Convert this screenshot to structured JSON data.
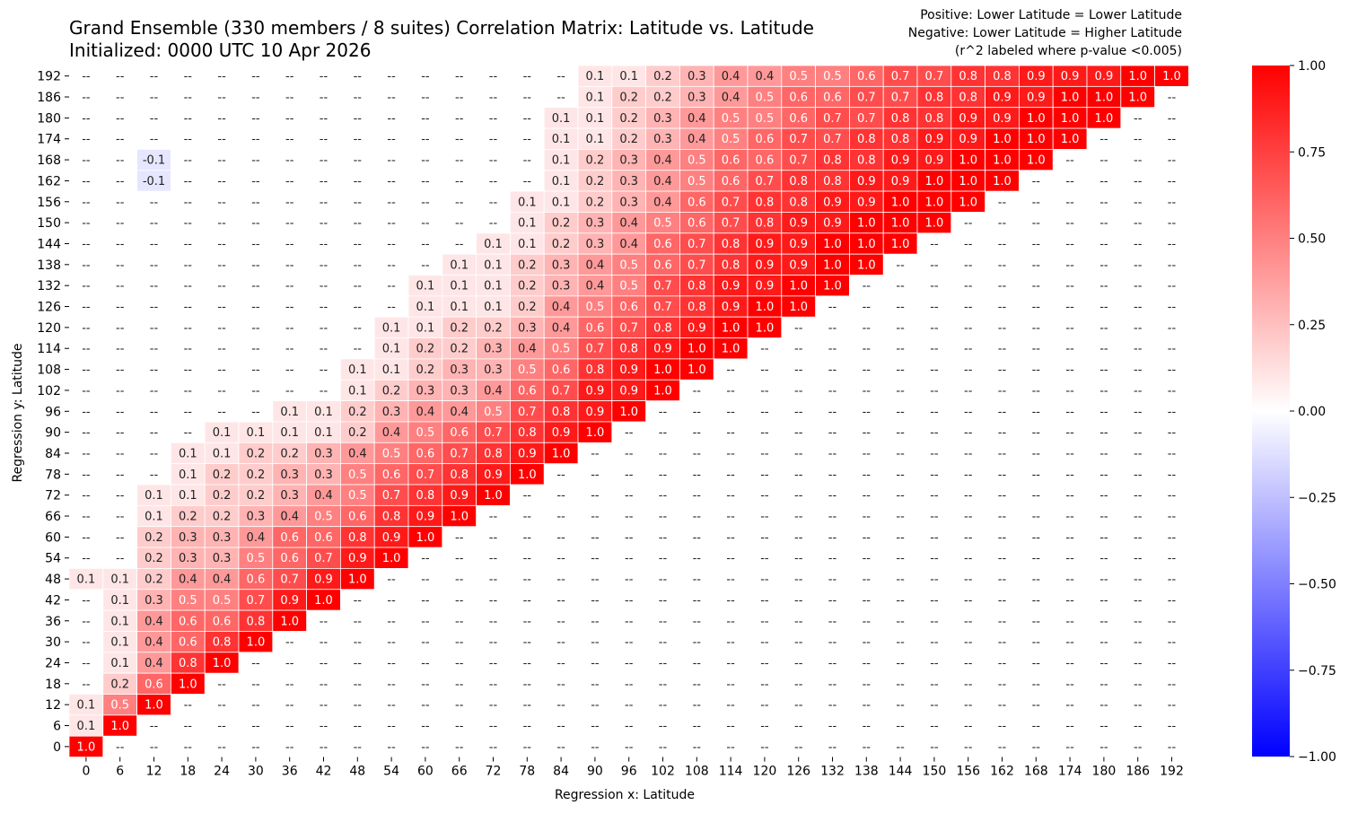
{
  "chart_data": {
    "type": "heatmap",
    "title": "Grand Ensemble (330 members / 8 suites) Correlation Matrix: Latitude vs. Latitude",
    "subtitle": "Initialized: 0000 UTC 10 Apr 2026",
    "annotations": [
      "Positive: Lower Latitude = Lower Latitude",
      "Negative: Lower Latitude = Higher Latitude",
      "(r^2 labeled where p-value <0.005)"
    ],
    "xlabel": "Regression x: Latitude",
    "ylabel": "Regression y: Latitude",
    "x_ticks": [
      "0",
      "6",
      "12",
      "18",
      "24",
      "30",
      "36",
      "42",
      "48",
      "54",
      "60",
      "66",
      "72",
      "78",
      "84",
      "90",
      "96",
      "102",
      "108",
      "114",
      "120",
      "126",
      "132",
      "138",
      "144",
      "150",
      "156",
      "162",
      "168",
      "174",
      "180",
      "186",
      "192"
    ],
    "y_ticks_top_to_bottom": [
      "192",
      "186",
      "180",
      "174",
      "168",
      "162",
      "156",
      "150",
      "144",
      "138",
      "132",
      "126",
      "120",
      "114",
      "108",
      "102",
      "96",
      "90",
      "84",
      "78",
      "72",
      "66",
      "60",
      "54",
      "48",
      "42",
      "36",
      "30",
      "24",
      "18",
      "12",
      "6",
      "0"
    ],
    "colorbar": {
      "min": -1.0,
      "max": 1.0,
      "ticks": [
        "1.00",
        "0.75",
        "0.50",
        "0.25",
        "0.00",
        "−0.25",
        "−0.50",
        "−0.75",
        "−1.00"
      ],
      "colors": {
        "negative": "#0000ff",
        "zero": "#ffffff",
        "positive": "#ff0000"
      }
    },
    "rows_top_to_bottom": [
      [
        "--",
        "--",
        "--",
        "--",
        "--",
        "--",
        "--",
        "--",
        "--",
        "--",
        "--",
        "--",
        "--",
        "--",
        "--",
        "0.1",
        "0.1",
        "0.2",
        "0.3",
        "0.4",
        "0.4",
        "0.5",
        "0.5",
        "0.6",
        "0.7",
        "0.7",
        "0.8",
        "0.8",
        "0.9",
        "0.9",
        "0.9",
        "1.0",
        "1.0"
      ],
      [
        "--",
        "--",
        "--",
        "--",
        "--",
        "--",
        "--",
        "--",
        "--",
        "--",
        "--",
        "--",
        "--",
        "--",
        "--",
        "0.1",
        "0.2",
        "0.2",
        "0.3",
        "0.4",
        "0.5",
        "0.6",
        "0.6",
        "0.7",
        "0.7",
        "0.8",
        "0.8",
        "0.9",
        "0.9",
        "1.0",
        "1.0",
        "1.0",
        "--"
      ],
      [
        "--",
        "--",
        "--",
        "--",
        "--",
        "--",
        "--",
        "--",
        "--",
        "--",
        "--",
        "--",
        "--",
        "--",
        "0.1",
        "0.1",
        "0.2",
        "0.3",
        "0.4",
        "0.5",
        "0.5",
        "0.6",
        "0.7",
        "0.7",
        "0.8",
        "0.8",
        "0.9",
        "0.9",
        "1.0",
        "1.0",
        "1.0",
        "--",
        "--"
      ],
      [
        "--",
        "--",
        "--",
        "--",
        "--",
        "--",
        "--",
        "--",
        "--",
        "--",
        "--",
        "--",
        "--",
        "--",
        "0.1",
        "0.1",
        "0.2",
        "0.3",
        "0.4",
        "0.5",
        "0.6",
        "0.7",
        "0.7",
        "0.8",
        "0.8",
        "0.9",
        "0.9",
        "1.0",
        "1.0",
        "1.0",
        "--",
        "--",
        "--"
      ],
      [
        "--",
        "--",
        "-0.1",
        "--",
        "--",
        "--",
        "--",
        "--",
        "--",
        "--",
        "--",
        "--",
        "--",
        "--",
        "0.1",
        "0.2",
        "0.3",
        "0.4",
        "0.5",
        "0.6",
        "0.6",
        "0.7",
        "0.8",
        "0.8",
        "0.9",
        "0.9",
        "1.0",
        "1.0",
        "1.0",
        "--",
        "--",
        "--",
        "--"
      ],
      [
        "--",
        "--",
        "-0.1",
        "--",
        "--",
        "--",
        "--",
        "--",
        "--",
        "--",
        "--",
        "--",
        "--",
        "--",
        "0.1",
        "0.2",
        "0.3",
        "0.4",
        "0.5",
        "0.6",
        "0.7",
        "0.8",
        "0.8",
        "0.9",
        "0.9",
        "1.0",
        "1.0",
        "1.0",
        "--",
        "--",
        "--",
        "--",
        "--"
      ],
      [
        "--",
        "--",
        "--",
        "--",
        "--",
        "--",
        "--",
        "--",
        "--",
        "--",
        "--",
        "--",
        "--",
        "0.1",
        "0.1",
        "0.2",
        "0.3",
        "0.4",
        "0.6",
        "0.7",
        "0.8",
        "0.8",
        "0.9",
        "0.9",
        "1.0",
        "1.0",
        "1.0",
        "--",
        "--",
        "--",
        "--",
        "--",
        "--"
      ],
      [
        "--",
        "--",
        "--",
        "--",
        "--",
        "--",
        "--",
        "--",
        "--",
        "--",
        "--",
        "--",
        "--",
        "0.1",
        "0.2",
        "0.3",
        "0.4",
        "0.5",
        "0.6",
        "0.7",
        "0.8",
        "0.9",
        "0.9",
        "1.0",
        "1.0",
        "1.0",
        "--",
        "--",
        "--",
        "--",
        "--",
        "--",
        "--"
      ],
      [
        "--",
        "--",
        "--",
        "--",
        "--",
        "--",
        "--",
        "--",
        "--",
        "--",
        "--",
        "--",
        "0.1",
        "0.1",
        "0.2",
        "0.3",
        "0.4",
        "0.6",
        "0.7",
        "0.8",
        "0.9",
        "0.9",
        "1.0",
        "1.0",
        "1.0",
        "--",
        "--",
        "--",
        "--",
        "--",
        "--",
        "--",
        "--"
      ],
      [
        "--",
        "--",
        "--",
        "--",
        "--",
        "--",
        "--",
        "--",
        "--",
        "--",
        "--",
        "0.1",
        "0.1",
        "0.2",
        "0.3",
        "0.4",
        "0.5",
        "0.6",
        "0.7",
        "0.8",
        "0.9",
        "0.9",
        "1.0",
        "1.0",
        "--",
        "--",
        "--",
        "--",
        "--",
        "--",
        "--",
        "--",
        "--"
      ],
      [
        "--",
        "--",
        "--",
        "--",
        "--",
        "--",
        "--",
        "--",
        "--",
        "--",
        "0.1",
        "0.1",
        "0.1",
        "0.2",
        "0.3",
        "0.4",
        "0.5",
        "0.7",
        "0.8",
        "0.9",
        "0.9",
        "1.0",
        "1.0",
        "--",
        "--",
        "--",
        "--",
        "--",
        "--",
        "--",
        "--",
        "--",
        "--"
      ],
      [
        "--",
        "--",
        "--",
        "--",
        "--",
        "--",
        "--",
        "--",
        "--",
        "--",
        "0.1",
        "0.1",
        "0.1",
        "0.2",
        "0.4",
        "0.5",
        "0.6",
        "0.7",
        "0.8",
        "0.9",
        "1.0",
        "1.0",
        "--",
        "--",
        "--",
        "--",
        "--",
        "--",
        "--",
        "--",
        "--",
        "--",
        "--"
      ],
      [
        "--",
        "--",
        "--",
        "--",
        "--",
        "--",
        "--",
        "--",
        "--",
        "0.1",
        "0.1",
        "0.2",
        "0.2",
        "0.3",
        "0.4",
        "0.6",
        "0.7",
        "0.8",
        "0.9",
        "1.0",
        "1.0",
        "--",
        "--",
        "--",
        "--",
        "--",
        "--",
        "--",
        "--",
        "--",
        "--",
        "--",
        "--"
      ],
      [
        "--",
        "--",
        "--",
        "--",
        "--",
        "--",
        "--",
        "--",
        "--",
        "0.1",
        "0.2",
        "0.2",
        "0.3",
        "0.4",
        "0.5",
        "0.7",
        "0.8",
        "0.9",
        "1.0",
        "1.0",
        "--",
        "--",
        "--",
        "--",
        "--",
        "--",
        "--",
        "--",
        "--",
        "--",
        "--",
        "--",
        "--"
      ],
      [
        "--",
        "--",
        "--",
        "--",
        "--",
        "--",
        "--",
        "--",
        "0.1",
        "0.1",
        "0.2",
        "0.3",
        "0.3",
        "0.5",
        "0.6",
        "0.8",
        "0.9",
        "1.0",
        "1.0",
        "--",
        "--",
        "--",
        "--",
        "--",
        "--",
        "--",
        "--",
        "--",
        "--",
        "--",
        "--",
        "--",
        "--"
      ],
      [
        "--",
        "--",
        "--",
        "--",
        "--",
        "--",
        "--",
        "--",
        "0.1",
        "0.2",
        "0.3",
        "0.3",
        "0.4",
        "0.6",
        "0.7",
        "0.9",
        "0.9",
        "1.0",
        "--",
        "--",
        "--",
        "--",
        "--",
        "--",
        "--",
        "--",
        "--",
        "--",
        "--",
        "--",
        "--",
        "--",
        "--"
      ],
      [
        "--",
        "--",
        "--",
        "--",
        "--",
        "--",
        "0.1",
        "0.1",
        "0.2",
        "0.3",
        "0.4",
        "0.4",
        "0.5",
        "0.7",
        "0.8",
        "0.9",
        "1.0",
        "--",
        "--",
        "--",
        "--",
        "--",
        "--",
        "--",
        "--",
        "--",
        "--",
        "--",
        "--",
        "--",
        "--",
        "--",
        "--"
      ],
      [
        "--",
        "--",
        "--",
        "--",
        "0.1",
        "0.1",
        "0.1",
        "0.1",
        "0.2",
        "0.4",
        "0.5",
        "0.6",
        "0.7",
        "0.8",
        "0.9",
        "1.0",
        "--",
        "--",
        "--",
        "--",
        "--",
        "--",
        "--",
        "--",
        "--",
        "--",
        "--",
        "--",
        "--",
        "--",
        "--",
        "--",
        "--"
      ],
      [
        "--",
        "--",
        "--",
        "0.1",
        "0.1",
        "0.2",
        "0.2",
        "0.3",
        "0.4",
        "0.5",
        "0.6",
        "0.7",
        "0.8",
        "0.9",
        "1.0",
        "--",
        "--",
        "--",
        "--",
        "--",
        "--",
        "--",
        "--",
        "--",
        "--",
        "--",
        "--",
        "--",
        "--",
        "--",
        "--",
        "--",
        "--"
      ],
      [
        "--",
        "--",
        "--",
        "0.1",
        "0.2",
        "0.2",
        "0.3",
        "0.3",
        "0.5",
        "0.6",
        "0.7",
        "0.8",
        "0.9",
        "1.0",
        "--",
        "--",
        "--",
        "--",
        "--",
        "--",
        "--",
        "--",
        "--",
        "--",
        "--",
        "--",
        "--",
        "--",
        "--",
        "--",
        "--",
        "--",
        "--"
      ],
      [
        "--",
        "--",
        "0.1",
        "0.1",
        "0.2",
        "0.2",
        "0.3",
        "0.4",
        "0.5",
        "0.7",
        "0.8",
        "0.9",
        "1.0",
        "--",
        "--",
        "--",
        "--",
        "--",
        "--",
        "--",
        "--",
        "--",
        "--",
        "--",
        "--",
        "--",
        "--",
        "--",
        "--",
        "--",
        "--",
        "--",
        "--"
      ],
      [
        "--",
        "--",
        "0.1",
        "0.2",
        "0.2",
        "0.3",
        "0.4",
        "0.5",
        "0.6",
        "0.8",
        "0.9",
        "1.0",
        "--",
        "--",
        "--",
        "--",
        "--",
        "--",
        "--",
        "--",
        "--",
        "--",
        "--",
        "--",
        "--",
        "--",
        "--",
        "--",
        "--",
        "--",
        "--",
        "--",
        "--"
      ],
      [
        "--",
        "--",
        "0.2",
        "0.3",
        "0.3",
        "0.4",
        "0.6",
        "0.6",
        "0.8",
        "0.9",
        "1.0",
        "--",
        "--",
        "--",
        "--",
        "--",
        "--",
        "--",
        "--",
        "--",
        "--",
        "--",
        "--",
        "--",
        "--",
        "--",
        "--",
        "--",
        "--",
        "--",
        "--",
        "--",
        "--"
      ],
      [
        "--",
        "--",
        "0.2",
        "0.3",
        "0.3",
        "0.5",
        "0.6",
        "0.7",
        "0.9",
        "1.0",
        "--",
        "--",
        "--",
        "--",
        "--",
        "--",
        "--",
        "--",
        "--",
        "--",
        "--",
        "--",
        "--",
        "--",
        "--",
        "--",
        "--",
        "--",
        "--",
        "--",
        "--",
        "--",
        "--"
      ],
      [
        "0.1",
        "0.1",
        "0.2",
        "0.4",
        "0.4",
        "0.6",
        "0.7",
        "0.9",
        "1.0",
        "--",
        "--",
        "--",
        "--",
        "--",
        "--",
        "--",
        "--",
        "--",
        "--",
        "--",
        "--",
        "--",
        "--",
        "--",
        "--",
        "--",
        "--",
        "--",
        "--",
        "--",
        "--",
        "--",
        "--"
      ],
      [
        "--",
        "0.1",
        "0.3",
        "0.5",
        "0.5",
        "0.7",
        "0.9",
        "1.0",
        "--",
        "--",
        "--",
        "--",
        "--",
        "--",
        "--",
        "--",
        "--",
        "--",
        "--",
        "--",
        "--",
        "--",
        "--",
        "--",
        "--",
        "--",
        "--",
        "--",
        "--",
        "--",
        "--",
        "--",
        "--"
      ],
      [
        "--",
        "0.1",
        "0.4",
        "0.6",
        "0.6",
        "0.8",
        "1.0",
        "--",
        "--",
        "--",
        "--",
        "--",
        "--",
        "--",
        "--",
        "--",
        "--",
        "--",
        "--",
        "--",
        "--",
        "--",
        "--",
        "--",
        "--",
        "--",
        "--",
        "--",
        "--",
        "--",
        "--",
        "--",
        "--"
      ],
      [
        "--",
        "0.1",
        "0.4",
        "0.6",
        "0.8",
        "1.0",
        "--",
        "--",
        "--",
        "--",
        "--",
        "--",
        "--",
        "--",
        "--",
        "--",
        "--",
        "--",
        "--",
        "--",
        "--",
        "--",
        "--",
        "--",
        "--",
        "--",
        "--",
        "--",
        "--",
        "--",
        "--",
        "--",
        "--"
      ],
      [
        "--",
        "0.1",
        "0.4",
        "0.8",
        "1.0",
        "--",
        "--",
        "--",
        "--",
        "--",
        "--",
        "--",
        "--",
        "--",
        "--",
        "--",
        "--",
        "--",
        "--",
        "--",
        "--",
        "--",
        "--",
        "--",
        "--",
        "--",
        "--",
        "--",
        "--",
        "--",
        "--",
        "--",
        "--"
      ],
      [
        "--",
        "0.2",
        "0.6",
        "1.0",
        "--",
        "--",
        "--",
        "--",
        "--",
        "--",
        "--",
        "--",
        "--",
        "--",
        "--",
        "--",
        "--",
        "--",
        "--",
        "--",
        "--",
        "--",
        "--",
        "--",
        "--",
        "--",
        "--",
        "--",
        "--",
        "--",
        "--",
        "--",
        "--"
      ],
      [
        "0.1",
        "0.5",
        "1.0",
        "--",
        "--",
        "--",
        "--",
        "--",
        "--",
        "--",
        "--",
        "--",
        "--",
        "--",
        "--",
        "--",
        "--",
        "--",
        "--",
        "--",
        "--",
        "--",
        "--",
        "--",
        "--",
        "--",
        "--",
        "--",
        "--",
        "--",
        "--",
        "--",
        "--"
      ],
      [
        "0.1",
        "1.0",
        "--",
        "--",
        "--",
        "--",
        "--",
        "--",
        "--",
        "--",
        "--",
        "--",
        "--",
        "--",
        "--",
        "--",
        "--",
        "--",
        "--",
        "--",
        "--",
        "--",
        "--",
        "--",
        "--",
        "--",
        "--",
        "--",
        "--",
        "--",
        "--",
        "--",
        "--"
      ],
      [
        "1.0",
        "--",
        "--",
        "--",
        "--",
        "--",
        "--",
        "--",
        "--",
        "--",
        "--",
        "--",
        "--",
        "--",
        "--",
        "--",
        "--",
        "--",
        "--",
        "--",
        "--",
        "--",
        "--",
        "--",
        "--",
        "--",
        "--",
        "--",
        "--",
        "--",
        "--",
        "--",
        "--"
      ]
    ]
  }
}
